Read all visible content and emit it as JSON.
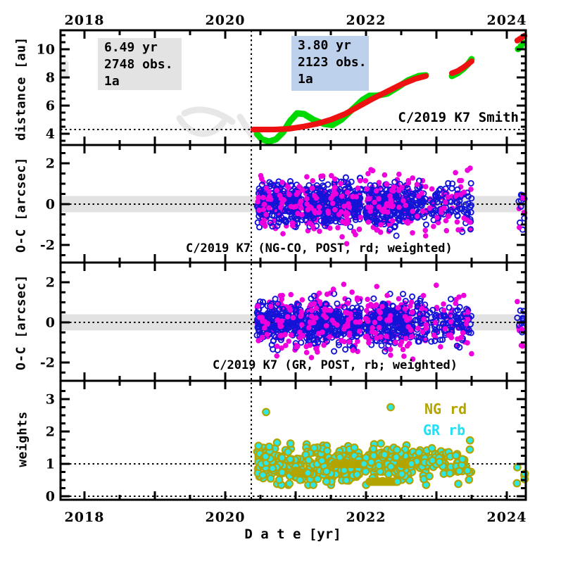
{
  "axes": {
    "x_title": "D a t e [yr]",
    "x_tick_values": [
      2018,
      2020,
      2022,
      2024
    ],
    "x_tick_labels": [
      "2018",
      "2020",
      "2022",
      "2024"
    ],
    "x_minor_step": 0.5,
    "xlim": [
      2017.66,
      2024.27
    ],
    "vline": 2020.37
  },
  "chart_data": [
    {
      "type": "scatter",
      "name": "distance-panel",
      "title": "C/2019 K7 Smith",
      "ylabel": "distance [au]",
      "ylim": [
        3.2,
        11.35
      ],
      "yticks": [
        4,
        6,
        8,
        10
      ],
      "ytick_labels": [
        "4",
        "6",
        "8",
        "10"
      ],
      "yminor": 0.5,
      "hlines": [
        4.3
      ],
      "annotations": [
        {
          "lines": [
            "6.49 yr",
            "2748 obs.",
            "1a"
          ],
          "bg": "#e3e3e3"
        },
        {
          "lines": [
            "3.80 yr",
            "2123 obs.",
            "1a"
          ],
          "bg": "#bdd0ec"
        }
      ],
      "watermark_color": "#e7e7e7",
      "series": [
        {
          "name": "geocentric-distance",
          "color": "#00d900",
          "linewidth": 9,
          "dotr": 4.6,
          "segments": [
            [
              [
                2020.45,
                4.0
              ],
              [
                2020.52,
                3.6
              ],
              [
                2020.62,
                3.45
              ],
              [
                2020.72,
                3.6
              ],
              [
                2020.82,
                4.1
              ],
              [
                2020.92,
                4.9
              ],
              [
                2021.02,
                5.45
              ],
              [
                2021.12,
                5.4
              ],
              [
                2021.25,
                5.0
              ],
              [
                2021.4,
                4.7
              ],
              [
                2021.52,
                4.62
              ],
              [
                2021.65,
                5.0
              ],
              [
                2021.8,
                5.7
              ],
              [
                2021.95,
                6.4
              ],
              [
                2022.05,
                6.7
              ],
              [
                2022.15,
                6.7
              ],
              [
                2022.3,
                6.85
              ],
              [
                2022.45,
                7.3
              ],
              [
                2022.6,
                7.8
              ],
              [
                2022.75,
                8.1
              ],
              [
                2022.85,
                8.15
              ]
            ],
            [
              [
                2023.22,
                8.1
              ],
              [
                2023.3,
                8.3
              ],
              [
                2023.38,
                8.6
              ],
              [
                2023.45,
                8.95
              ],
              [
                2023.5,
                9.3
              ]
            ]
          ],
          "dots": [
            [
              2024.16,
              10.02
            ],
            [
              2024.2,
              10.22
            ],
            [
              2024.23,
              10.45
            ]
          ]
        },
        {
          "name": "heliocentric-distance",
          "color": "#ee1111",
          "linewidth": 8,
          "dotr": 4.2,
          "segments": [
            [
              [
                2020.4,
                4.3
              ],
              [
                2020.7,
                4.3
              ],
              [
                2020.9,
                4.35
              ],
              [
                2021.1,
                4.5
              ],
              [
                2021.3,
                4.7
              ],
              [
                2021.5,
                5.0
              ],
              [
                2021.7,
                5.4
              ],
              [
                2021.9,
                5.95
              ],
              [
                2022.1,
                6.5
              ],
              [
                2022.3,
                7.0
              ],
              [
                2022.5,
                7.5
              ],
              [
                2022.7,
                7.9
              ],
              [
                2022.85,
                8.1
              ]
            ],
            [
              [
                2023.22,
                8.3
              ],
              [
                2023.3,
                8.45
              ],
              [
                2023.38,
                8.7
              ],
              [
                2023.45,
                8.95
              ],
              [
                2023.5,
                9.15
              ]
            ]
          ],
          "dots": [
            [
              2024.15,
              10.62
            ],
            [
              2024.18,
              10.72
            ],
            [
              2024.21,
              10.82
            ],
            [
              2024.25,
              10.95
            ]
          ]
        }
      ]
    },
    {
      "type": "scatter",
      "name": "oc-ng-panel",
      "label": "C/2019 K7 (NG-CO, POST, rd; weighted)",
      "ylabel": "O-C [arcsec]",
      "ylim": [
        -2.86,
        2.9
      ],
      "yticks": [
        -2,
        0,
        2
      ],
      "ytick_labels": [
        "-2",
        "0",
        "2"
      ],
      "yminor": 0.5,
      "band": [
        -0.4,
        0.4
      ],
      "band_color": "#e2e2e2",
      "hlines": [
        0
      ],
      "clusters_x": [
        [
          2020.45,
          2021.1
        ],
        [
          2021.14,
          2021.93
        ],
        [
          2021.99,
          2022.67
        ],
        [
          2022.7,
          2022.87
        ],
        [
          2022.9,
          2023.23
        ],
        [
          2023.27,
          2023.5
        ],
        [
          2024.14,
          2024.26
        ]
      ],
      "series": [
        {
          "name": "residuals-unweighted",
          "color": "#ee00dd",
          "style": "filled",
          "counts": [
            100,
            130,
            110,
            18,
            26,
            20,
            6
          ],
          "sigma": 0.7,
          "clip": 1.95,
          "seed": 11
        },
        {
          "name": "residuals-weighted",
          "color": "#1414d8",
          "style": "open",
          "counts": [
            200,
            280,
            230,
            35,
            45,
            38,
            10
          ],
          "sigma": 0.5,
          "clip": 1.55,
          "seed": 22
        }
      ]
    },
    {
      "type": "scatter",
      "name": "oc-gr-panel",
      "label": "C/2019 K7 (GR, POST, rb; weighted)",
      "ylabel": "O-C [arcsec]",
      "ylim": [
        -2.91,
        2.98
      ],
      "yticks": [
        -2,
        0,
        2
      ],
      "ytick_labels": [
        "-2",
        "0",
        "2"
      ],
      "yminor": 0.5,
      "band": [
        -0.4,
        0.4
      ],
      "band_color": "#e2e2e2",
      "hlines": [
        0
      ],
      "clusters_x": [
        [
          2020.45,
          2021.1
        ],
        [
          2021.14,
          2021.93
        ],
        [
          2021.99,
          2022.67
        ],
        [
          2022.7,
          2022.87
        ],
        [
          2022.9,
          2023.23
        ],
        [
          2023.27,
          2023.5
        ],
        [
          2024.14,
          2024.26
        ]
      ],
      "series": [
        {
          "name": "residuals-unweighted",
          "color": "#ee00dd",
          "style": "filled",
          "counts": [
            100,
            130,
            110,
            18,
            26,
            20,
            6
          ],
          "sigma": 0.7,
          "clip": 1.95,
          "seed": 33
        },
        {
          "name": "residuals-weighted",
          "color": "#1414d8",
          "style": "open",
          "counts": [
            200,
            280,
            230,
            35,
            45,
            38,
            10
          ],
          "sigma": 0.5,
          "clip": 1.55,
          "seed": 44
        }
      ]
    },
    {
      "type": "scatter",
      "name": "weights-panel",
      "ylabel": "weights",
      "ylim": [
        -0.11,
        3.56
      ],
      "yticks": [
        0,
        1,
        2,
        3
      ],
      "ytick_labels": [
        "0",
        "1",
        "2",
        "3"
      ],
      "yminor": 0.25,
      "hlines": [
        0,
        1
      ],
      "legend": [
        {
          "label": "NG rd",
          "color": "#b3a400"
        },
        {
          "label": "GR rb",
          "color": "#22dff2"
        }
      ],
      "clusters_x": [
        [
          2020.45,
          2021.1
        ],
        [
          2021.14,
          2021.93
        ],
        [
          2021.99,
          2022.67
        ],
        [
          2022.7,
          2022.87
        ],
        [
          2022.9,
          2023.23
        ],
        [
          2023.27,
          2023.5
        ],
        [
          2024.14,
          2024.26
        ]
      ],
      "series": [
        {
          "name": "weights",
          "fill": "#2ae8e8",
          "stroke": "#b3a400",
          "dotr": 4.8,
          "counts": [
            130,
            170,
            140,
            25,
            30,
            26,
            5
          ],
          "centers": [
            1.0,
            1.0,
            1.0,
            1.0,
            1.0,
            1.0,
            0.55
          ],
          "sigma": 0.27,
          "clip_lo": 0.35,
          "clip_hi": 1.78,
          "seed": 55,
          "runs": [
            [
              2021.55,
              2021.97,
              1.0
            ],
            [
              2022.05,
              2022.45,
              0.45
            ],
            [
              2020.98,
              2021.18,
              0.72
            ],
            [
              2022.5,
              2022.65,
              1.0
            ]
          ],
          "outliers": [
            [
              2020.58,
              2.6
            ],
            [
              2022.35,
              2.75
            ]
          ]
        }
      ]
    }
  ]
}
